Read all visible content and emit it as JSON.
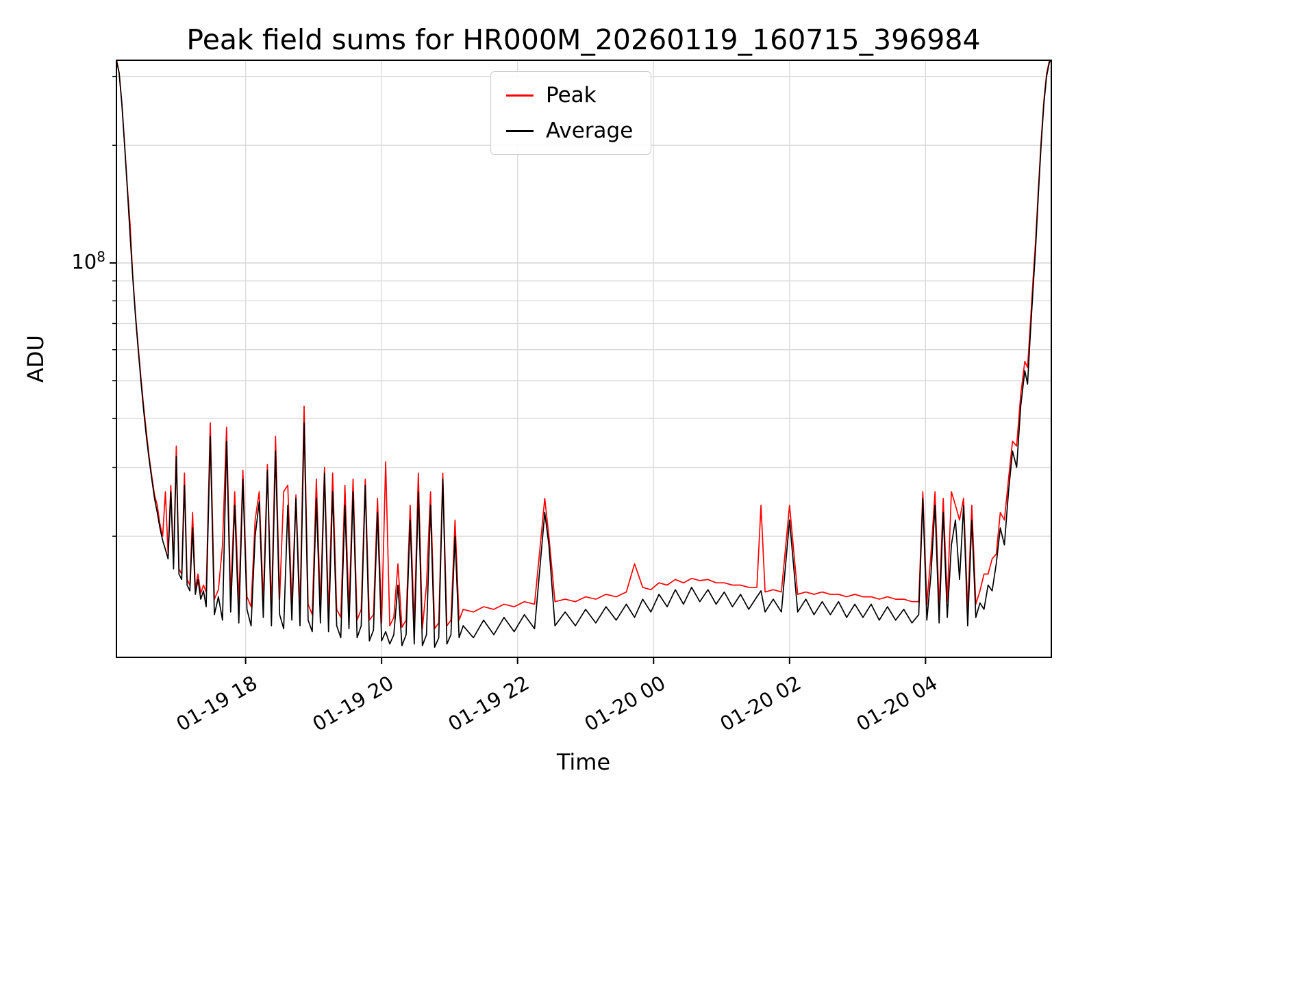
{
  "title": "Peak field sums for HR000M_20260119_160715_396984",
  "chart_data": {
    "type": "line",
    "title": "Peak field sums for HR000M_20260119_160715_396984",
    "xlabel": "Time",
    "ylabel": "ADU",
    "yscale": "log",
    "grid": true,
    "background": "#ffffff",
    "grid_color": "#d9d9d9",
    "xlim": [
      16.1,
      29.85
    ],
    "ylim": [
      9800000,
      330000000
    ],
    "x_unit": "hours since 2026-01-19 00:00",
    "xticks": [
      {
        "value": 18,
        "label": "01-19 18"
      },
      {
        "value": 20,
        "label": "01-19 20"
      },
      {
        "value": 22,
        "label": "01-19 22"
      },
      {
        "value": 24,
        "label": "01-20 00"
      },
      {
        "value": 26,
        "label": "01-20 02"
      },
      {
        "value": 28,
        "label": "01-20 04"
      }
    ],
    "ytick_major": {
      "value": 100000000.0,
      "base": "10",
      "exp": "8"
    },
    "yticks_minor": [
      20000000.0,
      30000000.0,
      40000000.0,
      50000000.0,
      60000000.0,
      70000000.0,
      80000000.0,
      90000000.0,
      200000000.0,
      300000000.0
    ],
    "legend": {
      "position": "upper center",
      "entries": [
        {
          "name": "Peak",
          "color": "#ff0000"
        },
        {
          "name": "Average",
          "color": "#000000"
        }
      ]
    },
    "x": [
      16.1,
      16.14,
      16.18,
      16.22,
      16.26,
      16.3,
      16.34,
      16.38,
      16.42,
      16.46,
      16.5,
      16.54,
      16.58,
      16.62,
      16.66,
      16.7,
      16.74,
      16.78,
      16.82,
      16.86,
      16.9,
      16.94,
      16.98,
      17.02,
      17.06,
      17.1,
      17.14,
      17.18,
      17.22,
      17.26,
      17.3,
      17.34,
      17.38,
      17.42,
      17.48,
      17.54,
      17.6,
      17.66,
      17.72,
      17.78,
      17.84,
      17.9,
      17.96,
      18.02,
      18.08,
      18.14,
      18.2,
      18.26,
      18.32,
      18.38,
      18.44,
      18.5,
      18.56,
      18.62,
      18.68,
      18.74,
      18.8,
      18.86,
      18.92,
      18.98,
      19.04,
      19.1,
      19.16,
      19.22,
      19.28,
      19.34,
      19.4,
      19.46,
      19.52,
      19.58,
      19.64,
      19.7,
      19.76,
      19.82,
      19.88,
      19.94,
      20.0,
      20.06,
      20.12,
      20.18,
      20.24,
      20.3,
      20.36,
      20.42,
      20.48,
      20.54,
      20.6,
      20.66,
      20.72,
      20.78,
      20.84,
      20.9,
      20.96,
      21.02,
      21.08,
      21.14,
      21.2,
      21.35,
      21.5,
      21.65,
      21.8,
      21.95,
      22.1,
      22.25,
      22.4,
      22.46,
      22.55,
      22.7,
      22.85,
      23.0,
      23.15,
      23.3,
      23.45,
      23.6,
      23.72,
      23.84,
      23.96,
      24.08,
      24.2,
      24.32,
      24.44,
      24.56,
      24.68,
      24.8,
      24.92,
      25.04,
      25.16,
      25.28,
      25.4,
      25.52,
      25.58,
      25.64,
      25.76,
      25.88,
      26.0,
      26.12,
      26.24,
      26.36,
      26.48,
      26.6,
      26.72,
      26.84,
      26.96,
      27.08,
      27.2,
      27.32,
      27.44,
      27.56,
      27.68,
      27.8,
      27.9,
      27.96,
      28.02,
      28.08,
      28.14,
      28.2,
      28.26,
      28.32,
      28.38,
      28.44,
      28.5,
      28.56,
      28.62,
      28.68,
      28.74,
      28.8,
      28.86,
      28.92,
      28.98,
      29.04,
      29.1,
      29.16,
      29.22,
      29.28,
      29.34,
      29.4,
      29.46,
      29.5,
      29.54,
      29.58,
      29.62,
      29.66,
      29.7,
      29.74,
      29.78,
      29.82,
      29.85
    ],
    "series": [
      {
        "name": "Peak",
        "color": "#ff0000",
        "values": [
          332000000.0,
          307000000.0,
          257000000.0,
          202000000.0,
          157000000.0,
          126000000.0,
          93000000.0,
          74000000.0,
          61000000.0,
          51000000.0,
          43000000.0,
          37000000.0,
          32000000.0,
          28500000.0,
          25500000.0,
          24000000.0,
          21500000.0,
          20000000.0,
          26000000.0,
          18000000.0,
          27000000.0,
          17000000.0,
          34000000.0,
          16500000.0,
          16000000.0,
          29000000.0,
          15500000.0,
          15000000.0,
          23000000.0,
          14700000.0,
          16000000.0,
          14300000.0,
          15000000.0,
          14400000.0,
          39000000.0,
          13800000.0,
          14600000.0,
          19000000.0,
          38000000.0,
          14000000.0,
          26000000.0,
          13500000.0,
          29500000.0,
          14000000.0,
          13200000.0,
          22000000.0,
          26000000.0,
          13600000.0,
          30500000.0,
          13000000.0,
          36000000.0,
          13800000.0,
          26000000.0,
          27000000.0,
          13400000.0,
          25500000.0,
          13000000.0,
          43000000.0,
          13400000.0,
          12600000.0,
          28000000.0,
          13200000.0,
          30000000.0,
          12600000.0,
          29000000.0,
          13000000.0,
          12400000.0,
          27000000.0,
          12800000.0,
          28000000.0,
          12200000.0,
          13000000.0,
          28000000.0,
          12200000.0,
          12600000.0,
          25000000.0,
          12000000.0,
          31000000.0,
          11800000.0,
          12400000.0,
          17000000.0,
          11700000.0,
          12200000.0,
          24000000.0,
          11800000.0,
          29000000.0,
          11600000.0,
          15000000.0,
          26000000.0,
          11600000.0,
          12000000.0,
          29000000.0,
          11800000.0,
          12200000.0,
          22000000.0,
          12200000.0,
          13000000.0,
          12800000.0,
          13200000.0,
          13000000.0,
          13400000.0,
          13200000.0,
          13600000.0,
          13400000.0,
          25000000.0,
          20000000.0,
          13600000.0,
          13800000.0,
          13600000.0,
          14000000.0,
          13800000.0,
          14200000.0,
          14000000.0,
          14400000.0,
          17000000.0,
          14800000.0,
          14600000.0,
          15200000.0,
          15000000.0,
          15500000.0,
          15200000.0,
          15600000.0,
          15400000.0,
          15500000.0,
          15200000.0,
          15200000.0,
          15000000.0,
          15000000.0,
          14800000.0,
          14800000.0,
          24000000.0,
          14400000.0,
          14600000.0,
          14400000.0,
          24000000.0,
          14200000.0,
          14400000.0,
          14200000.0,
          14400000.0,
          14200000.0,
          14200000.0,
          14000000.0,
          14200000.0,
          14000000.0,
          14000000.0,
          13800000.0,
          14000000.0,
          13800000.0,
          13800000.0,
          13600000.0,
          13600000.0,
          26000000.0,
          13400000.0,
          18000000.0,
          26000000.0,
          13200000.0,
          25000000.0,
          13600000.0,
          26000000.0,
          24000000.0,
          22000000.0,
          25000000.0,
          13000000.0,
          24000000.0,
          13400000.0,
          14500000.0,
          16000000.0,
          16000000.0,
          17500000.0,
          18000000.0,
          23000000.0,
          22000000.0,
          28000000.0,
          35000000.0,
          34000000.0,
          46000000.0,
          56000000.0,
          54000000.0,
          69000000.0,
          90000000.0,
          115000000.0,
          155000000.0,
          205000000.0,
          260000000.0,
          305000000.0,
          328000000.0,
          334000000.0
        ]
      },
      {
        "name": "Average",
        "color": "#000000",
        "values": [
          330000000.0,
          305000000.0,
          255000000.0,
          200000000.0,
          155000000.0,
          118000000.0,
          92000000.0,
          73000000.0,
          60000000.0,
          50000000.0,
          42000000.0,
          36000000.0,
          31500000.0,
          28000000.0,
          25000000.0,
          23000000.0,
          21000000.0,
          19500000.0,
          18500000.0,
          17500000.0,
          26000000.0,
          16500000.0,
          32000000.0,
          16000000.0,
          15500000.0,
          27000000.0,
          15000000.0,
          14500000.0,
          21000000.0,
          14200000.0,
          15500000.0,
          13800000.0,
          14500000.0,
          13200000.0,
          36000000.0,
          12600000.0,
          14000000.0,
          12200000.0,
          35000000.0,
          12800000.0,
          24000000.0,
          12000000.0,
          28000000.0,
          13000000.0,
          11800000.0,
          20000000.0,
          24500000.0,
          12400000.0,
          29500000.0,
          11800000.0,
          33000000.0,
          12600000.0,
          11600000.0,
          24000000.0,
          12200000.0,
          25000000.0,
          11800000.0,
          39000000.0,
          12200000.0,
          11400000.0,
          25000000.0,
          12000000.0,
          29000000.0,
          11400000.0,
          26000000.0,
          11800000.0,
          11000000.0,
          24000000.0,
          11600000.0,
          26000000.0,
          11000000.0,
          11800000.0,
          27000000.0,
          10800000.0,
          11500000.0,
          23000000.0,
          10800000.0,
          11400000.0,
          10600000.0,
          11200000.0,
          15000000.0,
          10500000.0,
          11200000.0,
          22000000.0,
          10600000.0,
          26000000.0,
          10500000.0,
          11200000.0,
          24000000.0,
          10400000.0,
          11000000.0,
          28000000.0,
          10600000.0,
          11200000.0,
          20000000.0,
          11000000.0,
          11800000.0,
          11000000.0,
          12200000.0,
          11200000.0,
          12400000.0,
          11400000.0,
          12600000.0,
          11600000.0,
          23000000.0,
          19000000.0,
          11800000.0,
          12800000.0,
          11800000.0,
          13000000.0,
          12000000.0,
          13200000.0,
          12200000.0,
          13400000.0,
          12400000.0,
          13800000.0,
          12800000.0,
          14200000.0,
          13200000.0,
          14600000.0,
          13400000.0,
          14800000.0,
          13600000.0,
          14600000.0,
          13400000.0,
          14400000.0,
          13200000.0,
          14200000.0,
          13000000.0,
          14000000.0,
          14500000.0,
          12800000.0,
          13800000.0,
          12800000.0,
          22000000.0,
          12800000.0,
          13800000.0,
          12600000.0,
          13600000.0,
          12600000.0,
          13600000.0,
          12400000.0,
          13400000.0,
          12400000.0,
          13400000.0,
          12200000.0,
          13200000.0,
          12200000.0,
          13000000.0,
          12000000.0,
          12600000.0,
          25000000.0,
          12200000.0,
          16000000.0,
          24000000.0,
          12000000.0,
          23000000.0,
          12400000.0,
          19000000.0,
          22000000.0,
          15500000.0,
          24000000.0,
          11800000.0,
          22000000.0,
          12400000.0,
          13500000.0,
          13000000.0,
          15000000.0,
          14500000.0,
          17000000.0,
          21000000.0,
          19000000.0,
          26000000.0,
          33000000.0,
          30000000.0,
          43000000.0,
          53000000.0,
          49000000.0,
          65000000.0,
          85000000.0,
          110000000.0,
          150000000.0,
          200000000.0,
          255000000.0,
          300000000.0,
          325000000.0,
          332000000.0
        ]
      }
    ]
  }
}
